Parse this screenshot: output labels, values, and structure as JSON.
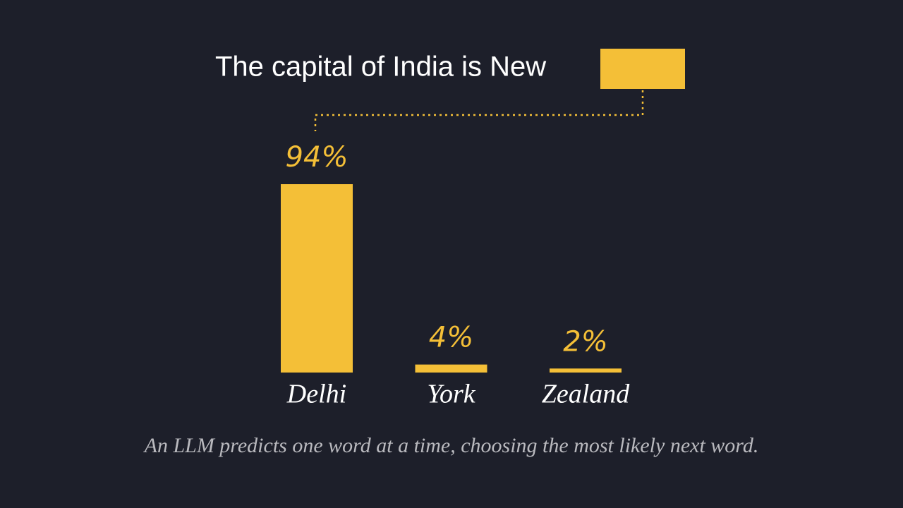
{
  "chart_data": {
    "type": "bar",
    "title": "The capital of India is New",
    "categories": [
      "Delhi",
      "York",
      "Zealand"
    ],
    "values": [
      94,
      4,
      2
    ],
    "value_labels": [
      "94%",
      "4%",
      "2%"
    ],
    "color": "#f4bf37",
    "annotation": "An LLM predicts one word at a time, choosing the most likely next word."
  }
}
